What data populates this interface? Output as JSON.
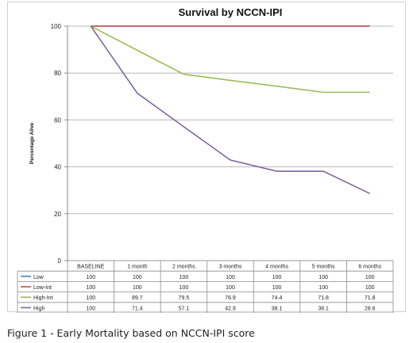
{
  "chart_data": {
    "type": "line",
    "title": "Survival by NCCN-IPI",
    "ylabel": "Percentage Alive",
    "xlabel": "",
    "ylim": [
      0,
      100
    ],
    "yticks": [
      0,
      20,
      40,
      60,
      80,
      100
    ],
    "grid": true,
    "legend": "table-below",
    "categories": [
      "BASELINE",
      "1 month",
      "2 months",
      "3 months",
      "4 months",
      "5 months",
      "6 months"
    ],
    "series": [
      {
        "name": "Low",
        "color": "#4f81bd",
        "values": [
          100,
          100,
          100,
          100,
          100,
          100,
          100
        ],
        "labels": [
          "100",
          "100",
          "100",
          "100",
          "100",
          "100",
          "100"
        ]
      },
      {
        "name": "Low-Int",
        "color": "#c0504d",
        "values": [
          100,
          100,
          100,
          100,
          100,
          100,
          100
        ],
        "labels": [
          "100",
          "100",
          "100",
          "100",
          "100",
          "100",
          "100"
        ]
      },
      {
        "name": "High-Int",
        "color": "#9bbb59",
        "values": [
          100,
          89.7,
          79.5,
          76.9,
          74.4,
          71.8,
          71.8
        ],
        "labels": [
          "100",
          "89.7",
          "79.5",
          "76.9",
          "74.4",
          "71.8",
          "71.8"
        ]
      },
      {
        "name": "High",
        "color": "#8064a2",
        "values": [
          100,
          71.4,
          57.1,
          42.9,
          38.1,
          38.1,
          28.6
        ],
        "labels": [
          "100",
          "71.4",
          "57.1",
          "42.9",
          "38.1",
          "38.1",
          "28.6"
        ]
      }
    ]
  },
  "caption": "Figure 1 - Early Mortality based on NCCN-IPI score"
}
